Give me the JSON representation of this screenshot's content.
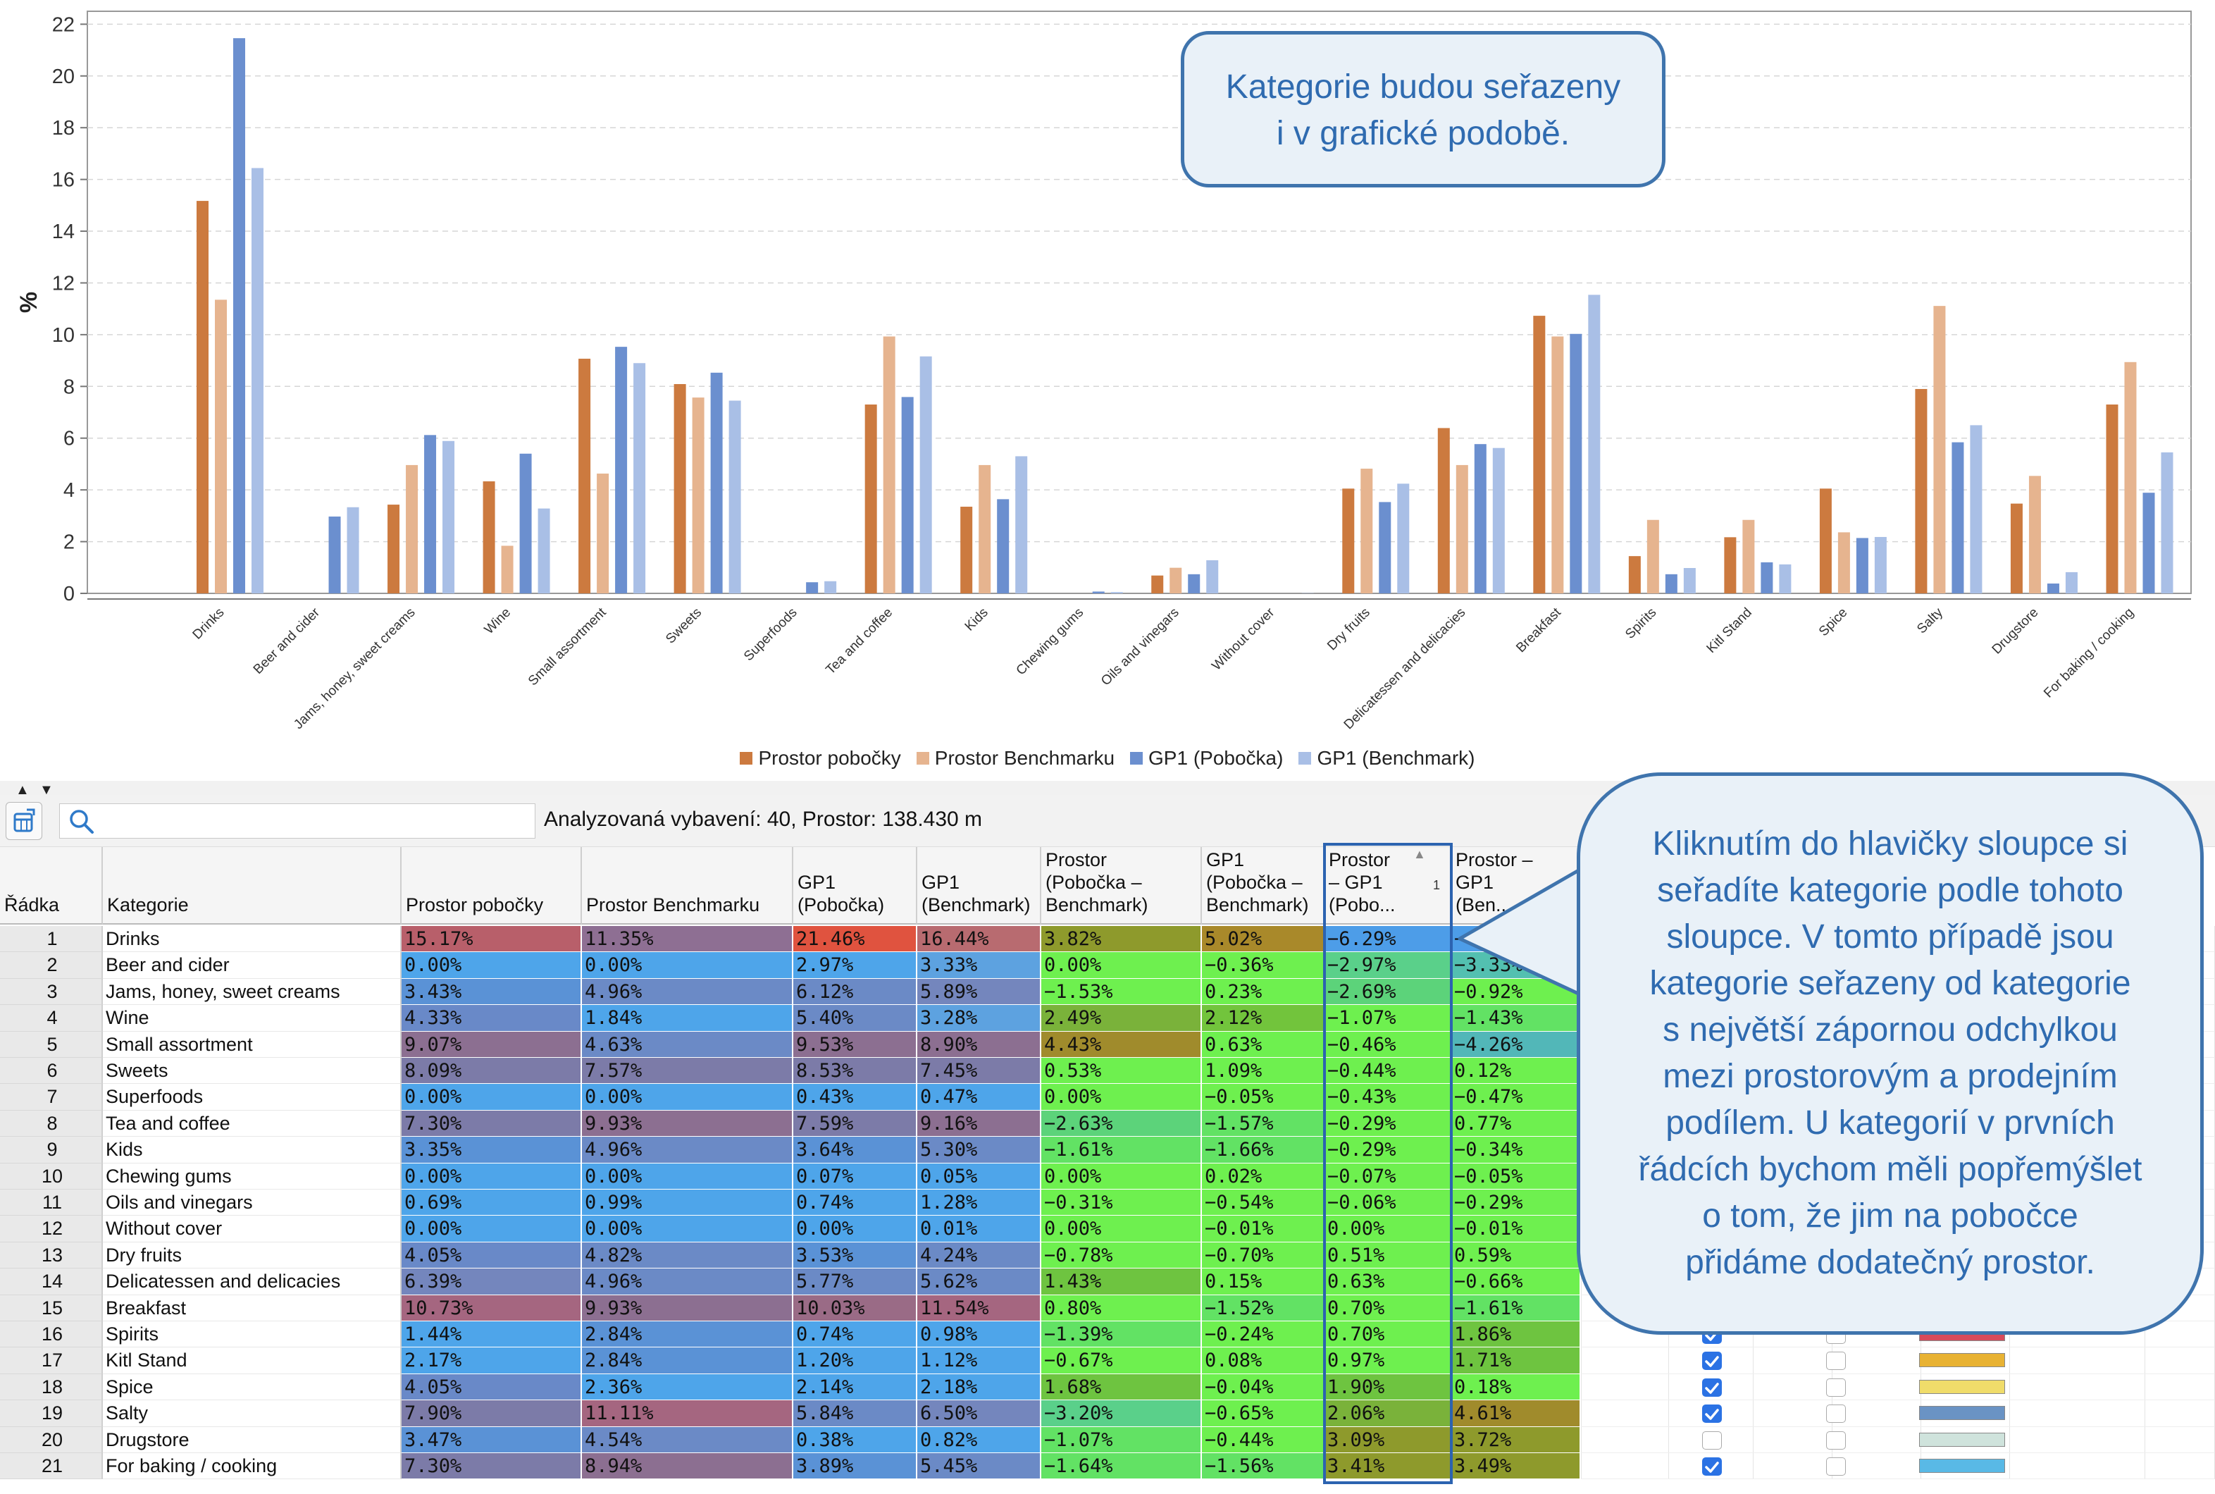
{
  "chart_data": {
    "type": "bar",
    "categories": [
      "Drinks",
      "Beer and cider",
      "Jams, honey, sweet creams",
      "Wine",
      "Small assortment",
      "Sweets",
      "Superfoods",
      "Tea and coffee",
      "Kids",
      "Chewing gums",
      "Oils and vinegars",
      "Without cover",
      "Dry fruits",
      "Delicatessen and delicacies",
      "Breakfast",
      "Spirits",
      "Kitl Stand",
      "Spice",
      "Salty",
      "Drugstore",
      "For baking / cooking"
    ],
    "series": [
      {
        "name": "Prostor pobočky",
        "color": "#cc7a3f",
        "values": [
          15.17,
          0.0,
          3.43,
          4.33,
          9.07,
          8.09,
          0.0,
          7.3,
          3.35,
          0.0,
          0.69,
          0.0,
          4.05,
          6.39,
          10.73,
          1.44,
          2.17,
          4.05,
          7.9,
          3.47,
          7.3
        ]
      },
      {
        "name": "Prostor Benchmarku",
        "color": "#e6b48f",
        "values": [
          11.35,
          0.0,
          4.96,
          1.84,
          4.63,
          7.57,
          0.0,
          9.93,
          4.96,
          0.0,
          0.99,
          0.0,
          4.82,
          4.96,
          9.93,
          2.84,
          2.84,
          2.36,
          11.11,
          4.54,
          8.94
        ]
      },
      {
        "name": "GP1 (Pobočka)",
        "color": "#6b8fcf",
        "values": [
          21.46,
          2.97,
          6.12,
          5.4,
          9.53,
          8.53,
          0.43,
          7.59,
          3.64,
          0.07,
          0.74,
          0.0,
          3.53,
          5.77,
          10.03,
          0.74,
          1.2,
          2.14,
          5.84,
          0.38,
          3.89
        ]
      },
      {
        "name": "GP1 (Benchmark)",
        "color": "#a9bfe6",
        "values": [
          16.44,
          3.33,
          5.89,
          3.28,
          8.9,
          7.45,
          0.47,
          9.16,
          5.3,
          0.05,
          1.28,
          0.01,
          4.24,
          5.62,
          11.54,
          0.98,
          1.12,
          2.18,
          6.5,
          0.82,
          5.45
        ]
      }
    ],
    "yticks": [
      "0",
      "2",
      "4",
      "6",
      "8",
      "10",
      "12",
      "14",
      "16",
      "18",
      "20",
      "22"
    ],
    "ylabel": "%",
    "ylim": [
      0,
      22.5
    ],
    "grid": true,
    "legend_position": "bottom"
  },
  "callout_top": [
    "Kategorie budou seřazeny",
    "i v grafické podobě."
  ],
  "callout_bottom": [
    "Kliknutím do hlavičky sloupce si",
    "seřadíte kategorie podle tohoto",
    "sloupce. V tomto případě jsou",
    "kategorie seřazeny od kategorie",
    "s největší zápornou odchylkou",
    "mezi prostorovým a prodejním",
    "podílem. U kategorií v prvních",
    "řádcích bychom měli popřemýšlet",
    "o tom, že jim na pobočce",
    "přidáme dodatečný prostor."
  ],
  "toolbar": {
    "analysis": "Analyzovaná vybavení: 40, Prostor: 138.430 m",
    "search_placeholder": ""
  },
  "table": {
    "headers": [
      "Řádka",
      "Kategorie",
      "Prostor pobočky",
      "Prostor Benchmarku",
      "GP1\n(Pobočka)",
      "GP1\n(Benchmark)",
      "Prostor\n(Pobočka –\nBenchmark)",
      "GP1\n(Pobočka –\nBenchmark)",
      "Prostor\n– GP1\n(Pobo...",
      "Prostor –\nGP1\n(Ben..."
    ],
    "sort_indicator": "1",
    "rows": [
      {
        "n": "1",
        "cat": "Drinks",
        "v": [
          "15.17%",
          "11.35%",
          "21.46%",
          "16.44%",
          "3.82%",
          "5.02%",
          "−6.29%",
          "−"
        ],
        "c": [
          "#b85f6a",
          "#8e6f93",
          "#e0533f",
          "#b86b70",
          "#8e9a2c",
          "#a9892a",
          "#4d9de8",
          "#4d9de8"
        ],
        "chk": null,
        "sw": null
      },
      {
        "n": "2",
        "cat": "Beer and cider",
        "v": [
          "0.00%",
          "0.00%",
          "2.97%",
          "3.33%",
          "0.00%",
          "−0.36%",
          "−2.97%",
          "−3.33%"
        ],
        "c": [
          "#4ea5ea",
          "#4ea5ea",
          "#4ea5ea",
          "#5da2e0",
          "#6ef04f",
          "#6ef04f",
          "#5ad08a",
          "#53c0b0"
        ],
        "chk": null,
        "sw": null
      },
      {
        "n": "3",
        "cat": "Jams, honey, sweet creams",
        "v": [
          "3.43%",
          "4.96%",
          "6.12%",
          "5.89%",
          "−1.53%",
          "0.23%",
          "−2.69%",
          "−0.92%"
        ],
        "c": [
          "#5a92d6",
          "#6b8ac6",
          "#6b8ac6",
          "#7486bd",
          "#6ef04f",
          "#6ef04f",
          "#5cd37a",
          "#6ef04f"
        ],
        "chk": null,
        "sw": null
      },
      {
        "n": "4",
        "cat": "Wine",
        "v": [
          "4.33%",
          "1.84%",
          "5.40%",
          "3.28%",
          "2.49%",
          "2.12%",
          "−1.07%",
          "−1.43%"
        ],
        "c": [
          "#6989c8",
          "#4ea5ea",
          "#6b8ac6",
          "#5da2e0",
          "#7ab23a",
          "#72c43c",
          "#6ef04f",
          "#62e264"
        ],
        "chk": null,
        "sw": null
      },
      {
        "n": "5",
        "cat": "Small assortment",
        "v": [
          "9.07%",
          "4.63%",
          "9.53%",
          "8.90%",
          "4.43%",
          "0.63%",
          "−0.46%",
          "−4.26%"
        ],
        "c": [
          "#8c6f91",
          "#6b8ac6",
          "#8c6f91",
          "#8c6f91",
          "#a08b2c",
          "#6ef04f",
          "#6ef04f",
          "#52b7b8"
        ],
        "chk": null,
        "sw": null
      },
      {
        "n": "6",
        "cat": "Sweets",
        "v": [
          "8.09%",
          "7.57%",
          "8.53%",
          "7.45%",
          "0.53%",
          "1.09%",
          "−0.44%",
          "0.12%"
        ],
        "c": [
          "#7c7ba8",
          "#7c7ba8",
          "#7c7ba8",
          "#7c7ba8",
          "#6ef04f",
          "#6ef04f",
          "#6ef04f",
          "#6ef04f"
        ],
        "chk": null,
        "sw": null
      },
      {
        "n": "7",
        "cat": "Superfoods",
        "v": [
          "0.00%",
          "0.00%",
          "0.43%",
          "0.47%",
          "0.00%",
          "−0.05%",
          "−0.43%",
          "−0.47%"
        ],
        "c": [
          "#4ea5ea",
          "#4ea5ea",
          "#4ea5ea",
          "#4ea5ea",
          "#6ef04f",
          "#6ef04f",
          "#6ef04f",
          "#6ef04f"
        ],
        "chk": null,
        "sw": null
      },
      {
        "n": "8",
        "cat": "Tea and coffee",
        "v": [
          "7.30%",
          "9.93%",
          "7.59%",
          "9.16%",
          "−2.63%",
          "−1.57%",
          "−0.29%",
          "0.77%"
        ],
        "c": [
          "#7c7ba8",
          "#8c6f91",
          "#7c7ba8",
          "#8c6f91",
          "#5cd37a",
          "#62e264",
          "#6ef04f",
          "#6ef04f"
        ],
        "chk": null,
        "sw": null
      },
      {
        "n": "9",
        "cat": "Kids",
        "v": [
          "3.35%",
          "4.96%",
          "3.64%",
          "5.30%",
          "−1.61%",
          "−1.66%",
          "−0.29%",
          "−0.34%"
        ],
        "c": [
          "#5a92d6",
          "#6b8ac6",
          "#5a92d6",
          "#6b8ac6",
          "#62e264",
          "#62e264",
          "#6ef04f",
          "#6ef04f"
        ],
        "chk": null,
        "sw": null
      },
      {
        "n": "10",
        "cat": "Chewing gums",
        "v": [
          "0.00%",
          "0.00%",
          "0.07%",
          "0.05%",
          "0.00%",
          "0.02%",
          "−0.07%",
          "−0.05%"
        ],
        "c": [
          "#4ea5ea",
          "#4ea5ea",
          "#4ea5ea",
          "#4ea5ea",
          "#6ef04f",
          "#6ef04f",
          "#6ef04f",
          "#6ef04f"
        ],
        "chk": null,
        "sw": null
      },
      {
        "n": "11",
        "cat": "Oils and vinegars",
        "v": [
          "0.69%",
          "0.99%",
          "0.74%",
          "1.28%",
          "−0.31%",
          "−0.54%",
          "−0.06%",
          "−0.29%"
        ],
        "c": [
          "#4ea5ea",
          "#4ea5ea",
          "#4ea5ea",
          "#4ea5ea",
          "#6ef04f",
          "#6ef04f",
          "#6ef04f",
          "#6ef04f"
        ],
        "chk": null,
        "sw": null
      },
      {
        "n": "12",
        "cat": "Without cover",
        "v": [
          "0.00%",
          "0.00%",
          "0.00%",
          "0.01%",
          "0.00%",
          "−0.01%",
          "0.00%",
          "−0.01%"
        ],
        "c": [
          "#4ea5ea",
          "#4ea5ea",
          "#4ea5ea",
          "#4ea5ea",
          "#6ef04f",
          "#6ef04f",
          "#6ef04f",
          "#6ef04f"
        ],
        "chk": null,
        "sw": null
      },
      {
        "n": "13",
        "cat": "Dry fruits",
        "v": [
          "4.05%",
          "4.82%",
          "3.53%",
          "4.24%",
          "−0.78%",
          "−0.70%",
          "0.51%",
          "0.59%"
        ],
        "c": [
          "#6989c8",
          "#6b8ac6",
          "#5a92d6",
          "#6b8ac6",
          "#6ef04f",
          "#6ef04f",
          "#6ef04f",
          "#6ef04f"
        ],
        "chk": null,
        "sw": null
      },
      {
        "n": "14",
        "cat": "Delicatessen and delicacies",
        "v": [
          "6.39%",
          "4.96%",
          "5.77%",
          "5.62%",
          "1.43%",
          "0.15%",
          "0.63%",
          "−0.66%"
        ],
        "c": [
          "#7486bd",
          "#6b8ac6",
          "#6b8ac6",
          "#6b8ac6",
          "#6ec440",
          "#6ef04f",
          "#6ef04f",
          "#6ef04f"
        ],
        "chk": null,
        "sw": null
      },
      {
        "n": "15",
        "cat": "Breakfast",
        "v": [
          "10.73%",
          "9.93%",
          "10.03%",
          "11.54%",
          "0.80%",
          "−1.52%",
          "0.70%",
          "−1.61%"
        ],
        "c": [
          "#a56680",
          "#8c6f91",
          "#9a6b86",
          "#a56680",
          "#6ef04f",
          "#62e264",
          "#6ef04f",
          "#62e264"
        ],
        "chk": null,
        "sw": null
      },
      {
        "n": "16",
        "cat": "Spirits",
        "v": [
          "1.44%",
          "2.84%",
          "0.74%",
          "0.98%",
          "−1.39%",
          "−0.24%",
          "0.70%",
          "1.86%"
        ],
        "c": [
          "#4ea5ea",
          "#5a92d6",
          "#4ea5ea",
          "#4ea5ea",
          "#62e264",
          "#6ef04f",
          "#6ef04f",
          "#6ec440"
        ],
        "chk": true,
        "sw": "#d94a5a"
      },
      {
        "n": "17",
        "cat": "Kitl Stand",
        "v": [
          "2.17%",
          "2.84%",
          "1.20%",
          "1.12%",
          "−0.67%",
          "0.08%",
          "0.97%",
          "1.71%"
        ],
        "c": [
          "#4ea5ea",
          "#5a92d6",
          "#4ea5ea",
          "#4ea5ea",
          "#6ef04f",
          "#6ef04f",
          "#6ef04f",
          "#6ec440"
        ],
        "chk": true,
        "sw": "#e8b233"
      },
      {
        "n": "18",
        "cat": "Spice",
        "v": [
          "4.05%",
          "2.36%",
          "2.14%",
          "2.18%",
          "1.68%",
          "−0.04%",
          "1.90%",
          "0.18%"
        ],
        "c": [
          "#6989c8",
          "#4ea5ea",
          "#4ea5ea",
          "#4ea5ea",
          "#6ec440",
          "#6ef04f",
          "#6ec440",
          "#6ef04f"
        ],
        "chk": true,
        "sw": "#f0dc6a"
      },
      {
        "n": "19",
        "cat": "Salty",
        "v": [
          "7.90%",
          "11.11%",
          "5.84%",
          "6.50%",
          "−3.20%",
          "−0.65%",
          "2.06%",
          "4.61%"
        ],
        "c": [
          "#7c7ba8",
          "#a56680",
          "#6b8ac6",
          "#7486bd",
          "#5ad08a",
          "#6ef04f",
          "#7ab23a",
          "#a08b2c"
        ],
        "chk": true,
        "sw": "#6a93c4"
      },
      {
        "n": "20",
        "cat": "Drugstore",
        "v": [
          "3.47%",
          "4.54%",
          "0.38%",
          "0.82%",
          "−1.07%",
          "−0.44%",
          "3.09%",
          "3.72%"
        ],
        "c": [
          "#5a92d6",
          "#6b8ac6",
          "#4ea5ea",
          "#4ea5ea",
          "#62e264",
          "#6ef04f",
          "#8e9a2c",
          "#8e9a2c"
        ],
        "chk": false,
        "sw": "#cfe3dc"
      },
      {
        "n": "21",
        "cat": "For baking / cooking",
        "v": [
          "7.30%",
          "8.94%",
          "3.89%",
          "5.45%",
          "−1.64%",
          "−1.56%",
          "3.41%",
          "3.49%"
        ],
        "c": [
          "#7c7ba8",
          "#8c6f91",
          "#5a92d6",
          "#6b8ac6",
          "#62e264",
          "#62e264",
          "#8e9a2c",
          "#8e9a2c"
        ],
        "chk": true,
        "sw": "#59b9e6"
      }
    ]
  }
}
